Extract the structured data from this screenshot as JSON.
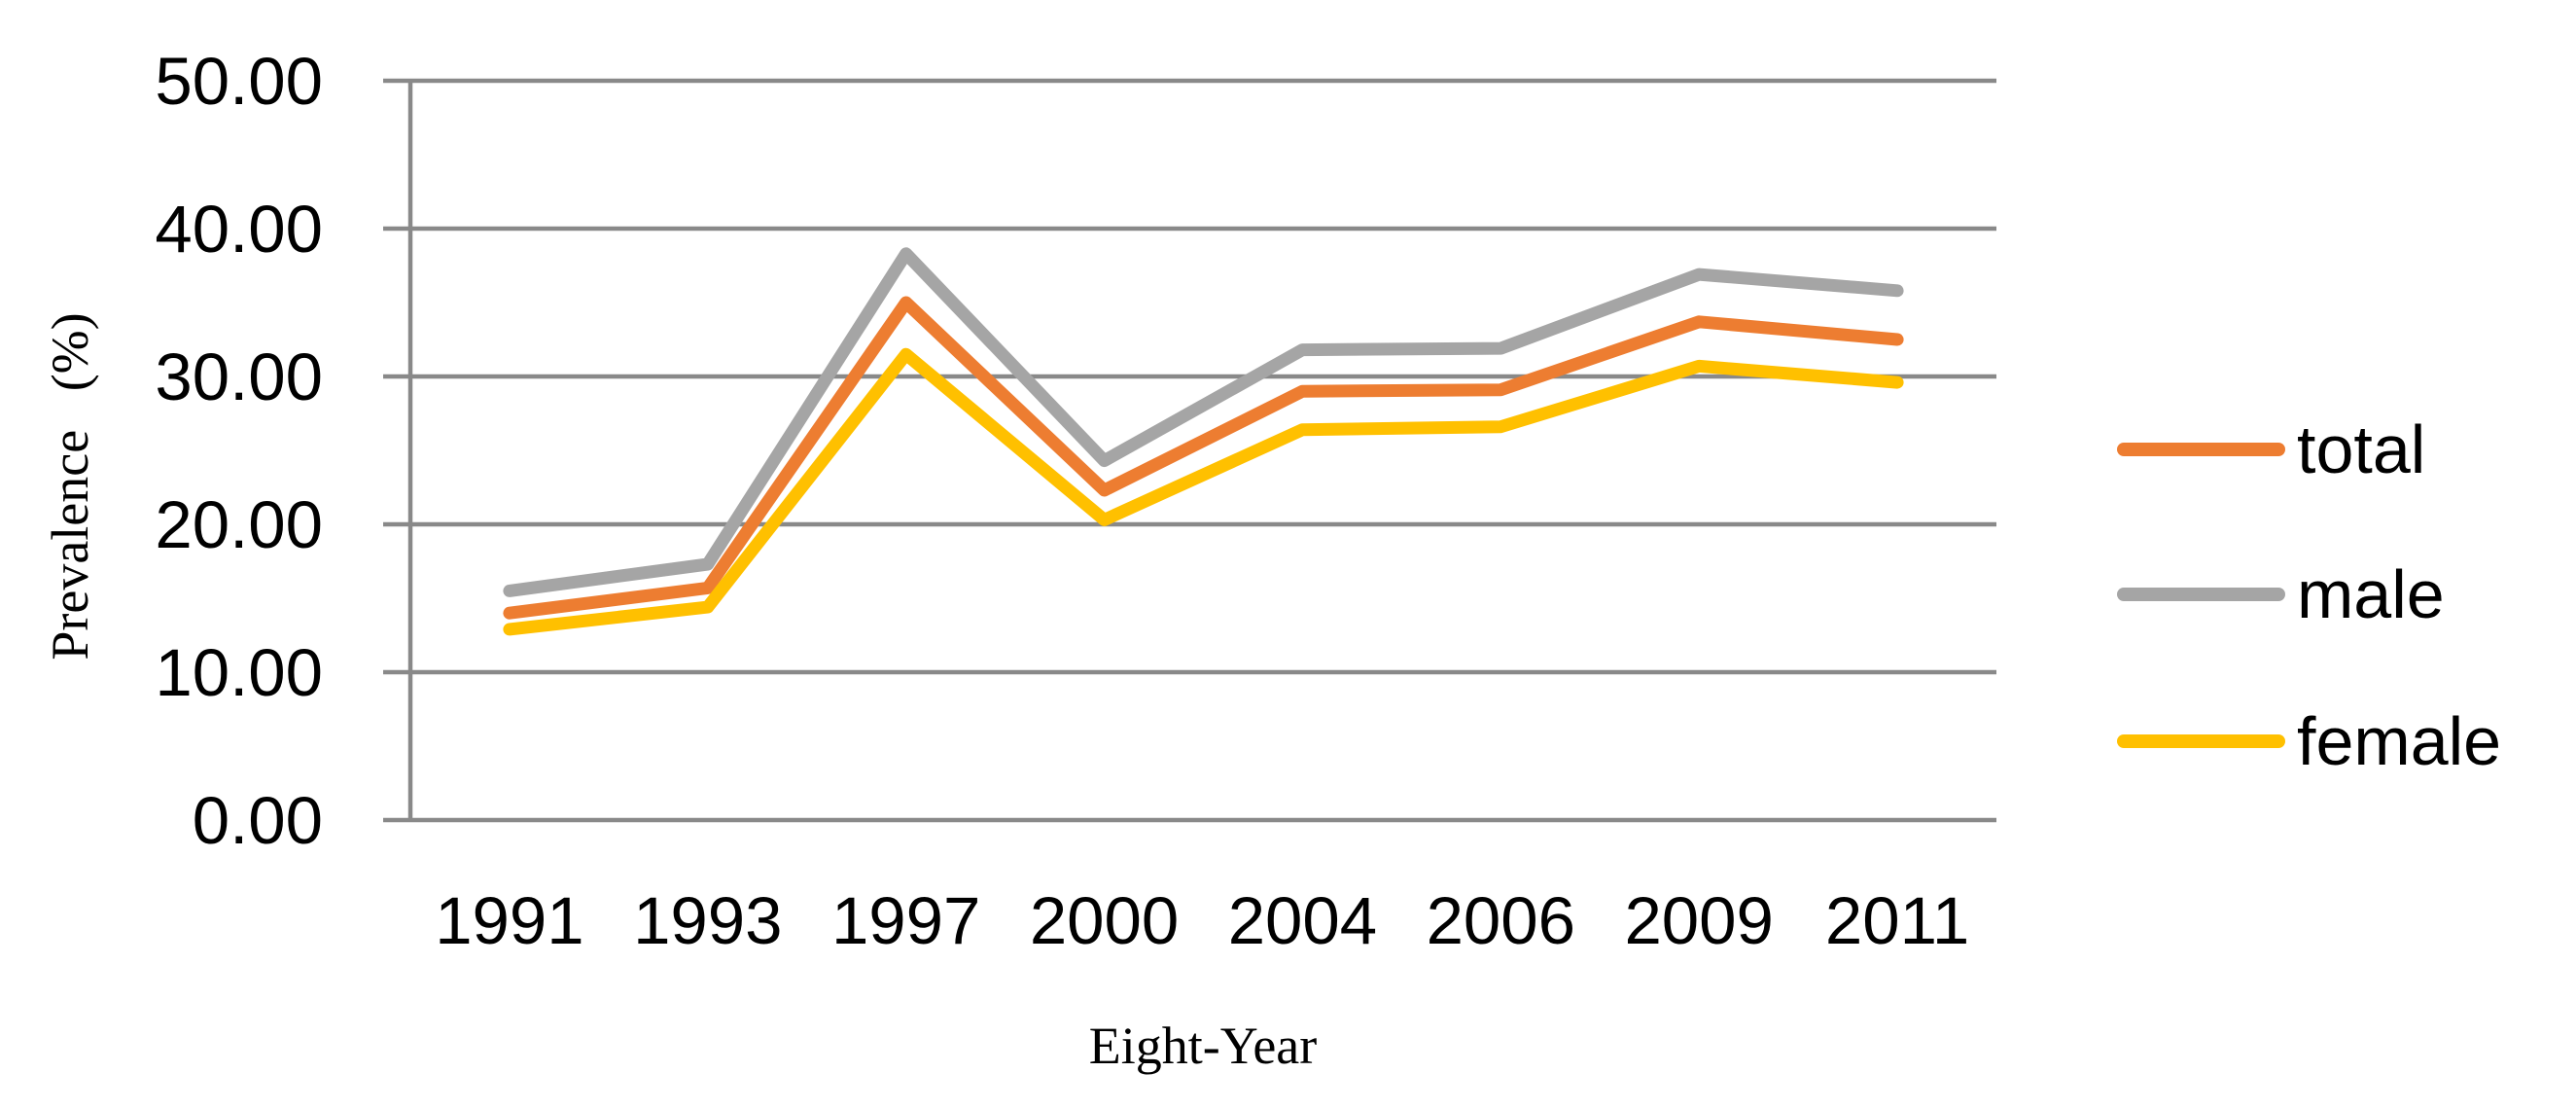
{
  "chart_data": {
    "type": "line",
    "title": "",
    "xlabel": "Eight-Year",
    "ylabel": "Prevalence (%)",
    "categories": [
      "1991",
      "1993",
      "1997",
      "2000",
      "2004",
      "2006",
      "2009",
      "2011"
    ],
    "series": [
      {
        "name": "total",
        "color": "#ED7D31",
        "values": [
          14.0,
          15.7,
          35.0,
          22.3,
          29.0,
          29.1,
          33.7,
          32.5
        ]
      },
      {
        "name": "male",
        "color": "#A5A5A5",
        "values": [
          15.5,
          17.3,
          38.3,
          24.3,
          31.8,
          31.9,
          36.9,
          35.8
        ]
      },
      {
        "name": "female",
        "color": "#FFC000",
        "values": [
          12.9,
          14.4,
          31.5,
          20.3,
          26.4,
          26.6,
          30.7,
          29.6
        ]
      }
    ],
    "ylim": [
      0,
      50
    ],
    "ytick_step": 10,
    "ytick_labels": [
      "0.00",
      "10.00",
      "20.00",
      "30.00",
      "40.00",
      "50.00"
    ],
    "grid": true,
    "gridline_color": "#898989",
    "axis_color": "#898989",
    "legend_position": "right",
    "legend_order": [
      "total",
      "male",
      "female"
    ]
  }
}
